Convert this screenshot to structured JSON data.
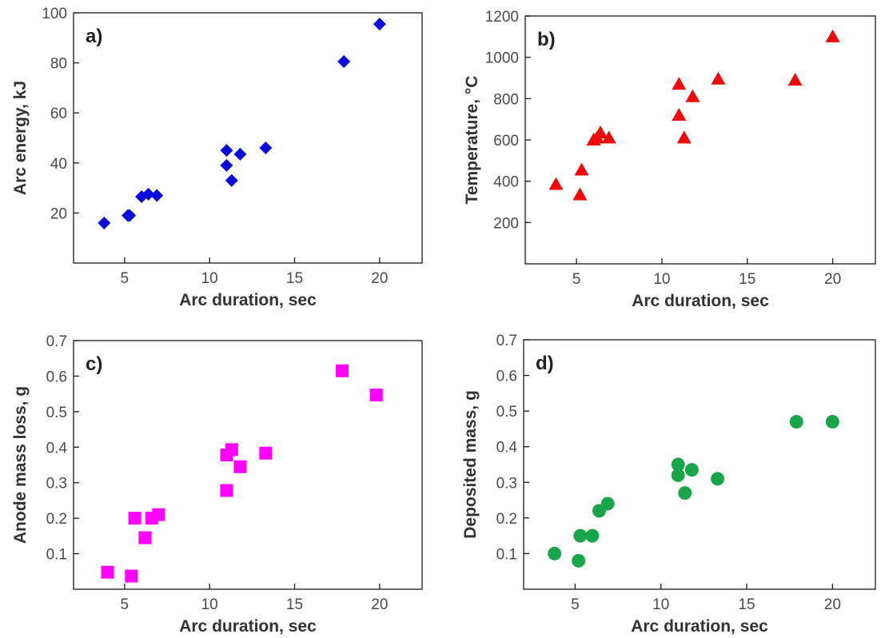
{
  "chart_data": [
    {
      "type": "scatter",
      "panel": "a)",
      "xlabel": "Arc duration, sec",
      "ylabel": "Arc energy, kJ",
      "xlim": [
        2,
        22.5
      ],
      "ylim": [
        0,
        100
      ],
      "xticks": [
        5,
        10,
        15,
        20
      ],
      "yticks": [
        20,
        40,
        60,
        80,
        100
      ],
      "grid": false,
      "marker": "diamond",
      "color": "#0a0adc",
      "x": [
        3.8,
        5.2,
        5.3,
        6.0,
        6.4,
        6.9,
        11.0,
        11.0,
        11.3,
        11.8,
        13.3,
        17.9,
        20.0
      ],
      "y": [
        16,
        19,
        19,
        26.5,
        27.5,
        27,
        45,
        39,
        33,
        43.5,
        46,
        80.5,
        95.5
      ]
    },
    {
      "type": "scatter",
      "panel": "b)",
      "xlabel": "Arc duration, sec",
      "ylabel": "Temperature, °C",
      "xlim": [
        2,
        22.5
      ],
      "ylim": [
        0,
        1200
      ],
      "xticks": [
        5,
        10,
        15,
        20
      ],
      "yticks": [
        200,
        400,
        600,
        800,
        1000,
        1200
      ],
      "grid": false,
      "marker": "triangle",
      "color": "#ee0a0a",
      "x": [
        3.8,
        5.2,
        5.3,
        6.0,
        6.2,
        6.4,
        6.9,
        11.0,
        11.0,
        11.3,
        11.8,
        13.3,
        17.8,
        20.0
      ],
      "y": [
        385,
        335,
        455,
        600,
        610,
        635,
        610,
        870,
        720,
        610,
        810,
        895,
        890,
        1100
      ]
    },
    {
      "type": "scatter",
      "panel": "c)",
      "xlabel": "Arc duration, sec",
      "ylabel": "Anode mass loss, g",
      "xlim": [
        2,
        22.5
      ],
      "ylim": [
        0,
        0.7
      ],
      "xticks": [
        5,
        10,
        15,
        20
      ],
      "yticks": [
        0.1,
        0.2,
        0.3,
        0.4,
        0.5,
        0.6,
        0.7
      ],
      "grid": false,
      "marker": "square",
      "color": "#ff00ff",
      "x": [
        4.0,
        5.4,
        5.6,
        6.2,
        6.6,
        7.0,
        11.0,
        11.0,
        11.3,
        11.8,
        13.3,
        17.8,
        19.8
      ],
      "y": [
        0.048,
        0.037,
        0.2,
        0.145,
        0.2,
        0.21,
        0.278,
        0.378,
        0.393,
        0.345,
        0.383,
        0.615,
        0.547
      ]
    },
    {
      "type": "scatter",
      "panel": "d)",
      "xlabel": "Arc duration, sec",
      "ylabel": "Deposited mass, g",
      "xlim": [
        2,
        22.5
      ],
      "ylim": [
        0,
        0.7
      ],
      "xticks": [
        5,
        10,
        15,
        20
      ],
      "yticks": [
        0.1,
        0.2,
        0.3,
        0.4,
        0.5,
        0.6,
        0.7
      ],
      "grid": false,
      "marker": "circle",
      "color": "#19a64a",
      "x": [
        3.8,
        5.2,
        5.3,
        6.0,
        6.4,
        6.9,
        11.0,
        11.0,
        11.4,
        11.8,
        13.3,
        17.9,
        20.0
      ],
      "y": [
        0.1,
        0.08,
        0.15,
        0.15,
        0.22,
        0.24,
        0.35,
        0.32,
        0.27,
        0.335,
        0.31,
        0.47,
        0.47
      ]
    }
  ]
}
